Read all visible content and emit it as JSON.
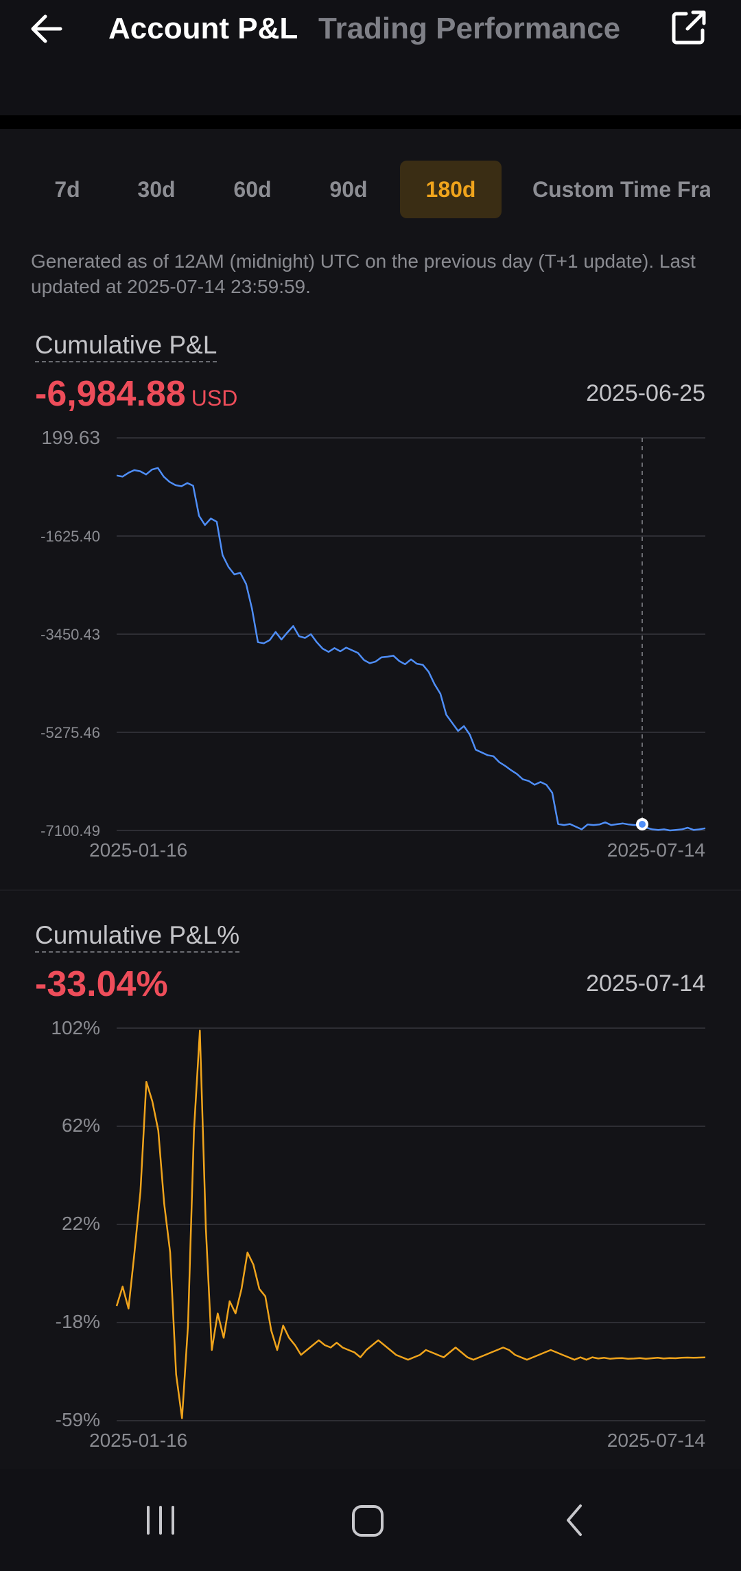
{
  "header": {
    "back_icon": "arrow-left-icon",
    "tabs": [
      {
        "label": "Account P&L",
        "active": true
      },
      {
        "label": "Trading Performance",
        "active": false
      }
    ],
    "share_icon": "external-link-icon"
  },
  "ranges": [
    {
      "label": "7d",
      "active": false
    },
    {
      "label": "30d",
      "active": false
    },
    {
      "label": "60d",
      "active": false
    },
    {
      "label": "90d",
      "active": false
    },
    {
      "label": "180d",
      "active": true
    },
    {
      "label": "Custom Time Fra",
      "active": false
    }
  ],
  "note": "Generated as of 12AM (midnight) UTC on the previous day (T+1 update). Last updated at 2025-07-14 23:59:59.",
  "pnl": {
    "title": "Cumulative P&L",
    "value": "-6,984.88",
    "unit": "USD",
    "date": "2025-06-25"
  },
  "pnl_pct": {
    "title": "Cumulative P&L%",
    "value": "-33.04%",
    "date": "2025-07-14"
  },
  "colors": {
    "pnl_line": "#4f8ef7",
    "pct_line": "#f0a41c",
    "negative": "#ee4d5a",
    "active_range": "#f0a41c"
  },
  "chart_data": [
    {
      "type": "line",
      "title": "",
      "y_ticks": [
        "199.63",
        "-1625.40",
        "-3450.43",
        "-5275.46",
        "-7100.49"
      ],
      "x_ticks": [
        "2025-01-16",
        "2025-07-14"
      ],
      "ylim": [
        -7100.49,
        199.63
      ],
      "grid": true,
      "selected": {
        "x": "2025-06-25",
        "y": -6984.88
      },
      "series": [
        {
          "values": [
            -500,
            -520,
            -450,
            -400,
            -420,
            -480,
            -390,
            -360,
            -520,
            -620,
            -680,
            -700,
            -640,
            -690,
            -1250,
            -1420,
            -1300,
            -1360,
            -1980,
            -2200,
            -2340,
            -2310,
            -2520,
            -2980,
            -3600,
            -3620,
            -3560,
            -3410,
            -3550,
            -3420,
            -3300,
            -3490,
            -3520,
            -3450,
            -3600,
            -3720,
            -3780,
            -3710,
            -3770,
            -3700,
            -3750,
            -3800,
            -3930,
            -3990,
            -3960,
            -3880,
            -3870,
            -3850,
            -3950,
            -4010,
            -3920,
            -4000,
            -4020,
            -4150,
            -4380,
            -4560,
            -4950,
            -5100,
            -5250,
            -5160,
            -5320,
            -5600,
            -5650,
            -5700,
            -5720,
            -5830,
            -5900,
            -5980,
            -6050,
            -6150,
            -6180,
            -6250,
            -6200,
            -6250,
            -6400,
            -6980,
            -7000,
            -6980,
            -7030,
            -7080,
            -6990,
            -7000,
            -6990,
            -6950,
            -7000,
            -6984.88,
            -6970,
            -6990,
            -7000,
            -6990,
            -7050,
            -7080,
            -7090,
            -7080,
            -7100,
            -7090,
            -7080,
            -7050,
            -7090,
            -7080,
            -7060
          ]
        }
      ]
    },
    {
      "type": "line",
      "title": "",
      "y_ticks": [
        "102%",
        "62%",
        "22%",
        "-18%",
        "-59%"
      ],
      "x_ticks": [
        "2025-01-16",
        "2025-07-14"
      ],
      "ylim": [
        -59,
        102
      ],
      "grid": true,
      "series": [
        {
          "values": [
            -12,
            -4,
            -13,
            10,
            35,
            80,
            72,
            60,
            30,
            10,
            -40,
            -58,
            -20,
            60,
            101,
            20,
            -30,
            -15,
            -25,
            -10,
            -15,
            -5,
            10,
            5,
            -5,
            -8,
            -22,
            -30,
            -20,
            -25,
            -28,
            -32,
            -30,
            -28,
            -26,
            -28,
            -29,
            -27,
            -29,
            -30,
            -31,
            -33,
            -30,
            -28,
            -26,
            -28,
            -30,
            -32,
            -33,
            -34,
            -33,
            -32,
            -30,
            -31,
            -32,
            -33,
            -31,
            -29,
            -31,
            -33,
            -34,
            -33,
            -32,
            -31,
            -30,
            -29,
            -30,
            -32,
            -33,
            -34,
            -33,
            -32,
            -31,
            -30,
            -31,
            -32,
            -33,
            -34,
            -33,
            -34,
            -33,
            -33.5,
            -33.2,
            -33.6,
            -33.4,
            -33.3,
            -33.6,
            -33.5,
            -33.3,
            -33.6,
            -33.4,
            -33.2,
            -33.5,
            -33.3,
            -33.4,
            -33.2,
            -33.1,
            -33.2,
            -33.1,
            -33.04
          ]
        }
      ]
    }
  ],
  "navbar": {
    "recents_icon": "recent-apps-icon",
    "home_icon": "home-icon",
    "back_icon": "nav-back-icon"
  }
}
